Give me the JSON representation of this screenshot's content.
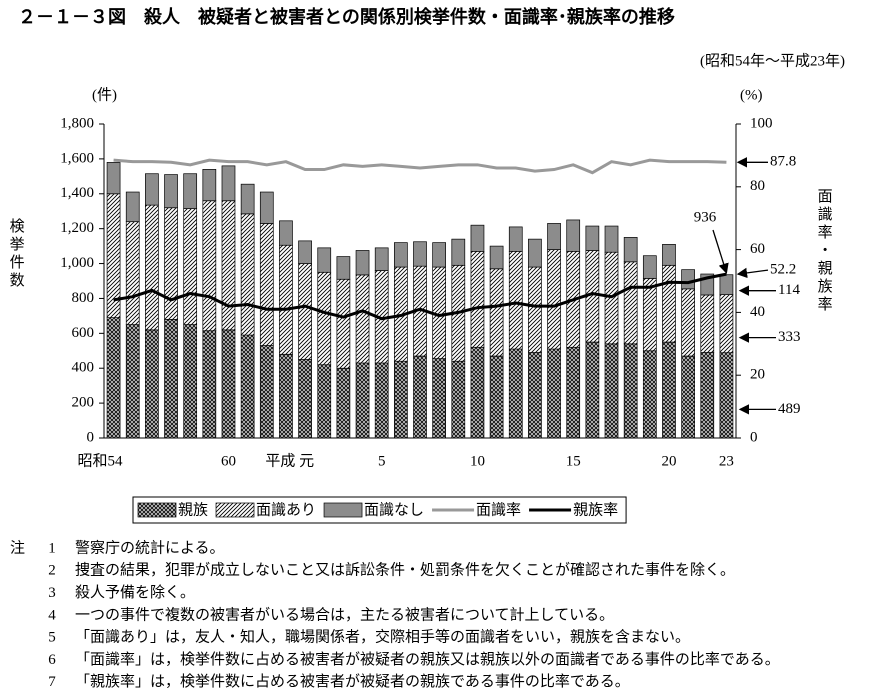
{
  "chart_data": {
    "type": "bar",
    "title": "２－１－３図　殺人　被疑者と被害者との関係別検挙件数・面識率･親族率の推移",
    "subtitle": "(昭和54年～平成23年)",
    "y_unit": "(件)",
    "y2_unit": "(%)",
    "y_label": "検挙件数",
    "y2_label": "面識率・親族率",
    "categories": [
      "昭和54",
      null,
      null,
      null,
      null,
      null,
      "60",
      null,
      null,
      null,
      "平成 元",
      null,
      null,
      null,
      "5",
      null,
      null,
      null,
      null,
      "10",
      null,
      null,
      null,
      null,
      "15",
      null,
      null,
      null,
      null,
      "20",
      null,
      null,
      "23"
    ],
    "series": [
      {
        "name": "親族",
        "color": "#333333",
        "pattern": "crosshatch",
        "values": [
          690,
          650,
          620,
          680,
          650,
          615,
          620,
          590,
          530,
          480,
          450,
          420,
          400,
          430,
          430,
          440,
          470,
          455,
          440,
          520,
          470,
          510,
          490,
          510,
          520,
          550,
          540,
          540,
          500,
          550,
          470,
          490,
          489
        ]
      },
      {
        "name": "面識あり",
        "color": "#ffffff",
        "pattern": "diagonal",
        "values": [
          710,
          590,
          715,
          640,
          665,
          745,
          740,
          695,
          700,
          625,
          550,
          530,
          510,
          505,
          530,
          540,
          515,
          525,
          550,
          550,
          500,
          560,
          490,
          570,
          550,
          525,
          525,
          470,
          415,
          440,
          385,
          330,
          333
        ]
      },
      {
        "name": "面識なし",
        "color": "#8c8c8c",
        "pattern": null,
        "values": [
          180,
          170,
          180,
          190,
          200,
          180,
          200,
          170,
          180,
          140,
          130,
          140,
          130,
          140,
          130,
          140,
          140,
          140,
          150,
          150,
          130,
          140,
          160,
          150,
          180,
          140,
          150,
          140,
          130,
          120,
          110,
          120,
          114
        ]
      },
      {
        "name": "面識率",
        "color": "#999999",
        "type": "line",
        "axis": "y2",
        "values": [
          88.5,
          88,
          88,
          87.8,
          87,
          88.5,
          88,
          88,
          87,
          88,
          85.5,
          85.5,
          87,
          86.5,
          87,
          86.5,
          86,
          86.5,
          87,
          87,
          86,
          86,
          85,
          85.5,
          87,
          84.5,
          88,
          87,
          88.5,
          88,
          88,
          88,
          87.8
        ]
      },
      {
        "name": "親族率",
        "color": "#000000",
        "type": "line",
        "axis": "y2",
        "values": [
          44,
          45,
          47,
          44,
          46,
          45,
          42,
          42.5,
          41,
          41,
          42,
          40,
          38.5,
          40.5,
          38,
          39,
          41,
          39,
          40,
          41.5,
          42,
          43,
          42,
          42,
          44,
          46,
          45,
          48,
          48,
          49.6,
          49.5,
          51,
          52.2
        ]
      }
    ],
    "ylim": [
      0,
      1800
    ],
    "yticks": [
      0,
      200,
      400,
      600,
      800,
      {
        "value": 1000,
        "label": "1,000"
      },
      {
        "value": 1200,
        "label": "1,200"
      },
      {
        "value": 1400,
        "label": "1,400"
      },
      {
        "value": 1600,
        "label": "1,600"
      },
      {
        "value": 1800,
        "label": "1,800"
      }
    ],
    "y2lim": [
      0,
      100
    ],
    "y2ticks": [
      0,
      20,
      40,
      60,
      80,
      100
    ],
    "total_annotation": "936",
    "notes": {
      "label": "注",
      "items": [
        {
          "num": "1",
          "text": "警察庁の統計による。"
        },
        {
          "num": "2",
          "text": "捜査の結果，犯罪が成立しないこと又は訴訟条件・処罰条件を欠くことが確認された事件を除く。"
        },
        {
          "num": "3",
          "text": "殺人予備を除く。"
        },
        {
          "num": "4",
          "text": "一つの事件で複数の被害者がいる場合は，主たる被害者について計上している。"
        },
        {
          "num": "5",
          "text": "「面識あり」は，友人・知人，職場関係者，交際相手等の面識者をいい，親族を含まない。"
        },
        {
          "num": "6",
          "text": "「面識率」は，検挙件数に占める被害者が被疑者の親族又は親族以外の面識者である事件の比率である。"
        },
        {
          "num": "7",
          "text": "「親族率」は，検挙件数に占める被害者が被疑者の親族である事件の比率である。"
        }
      ]
    }
  }
}
